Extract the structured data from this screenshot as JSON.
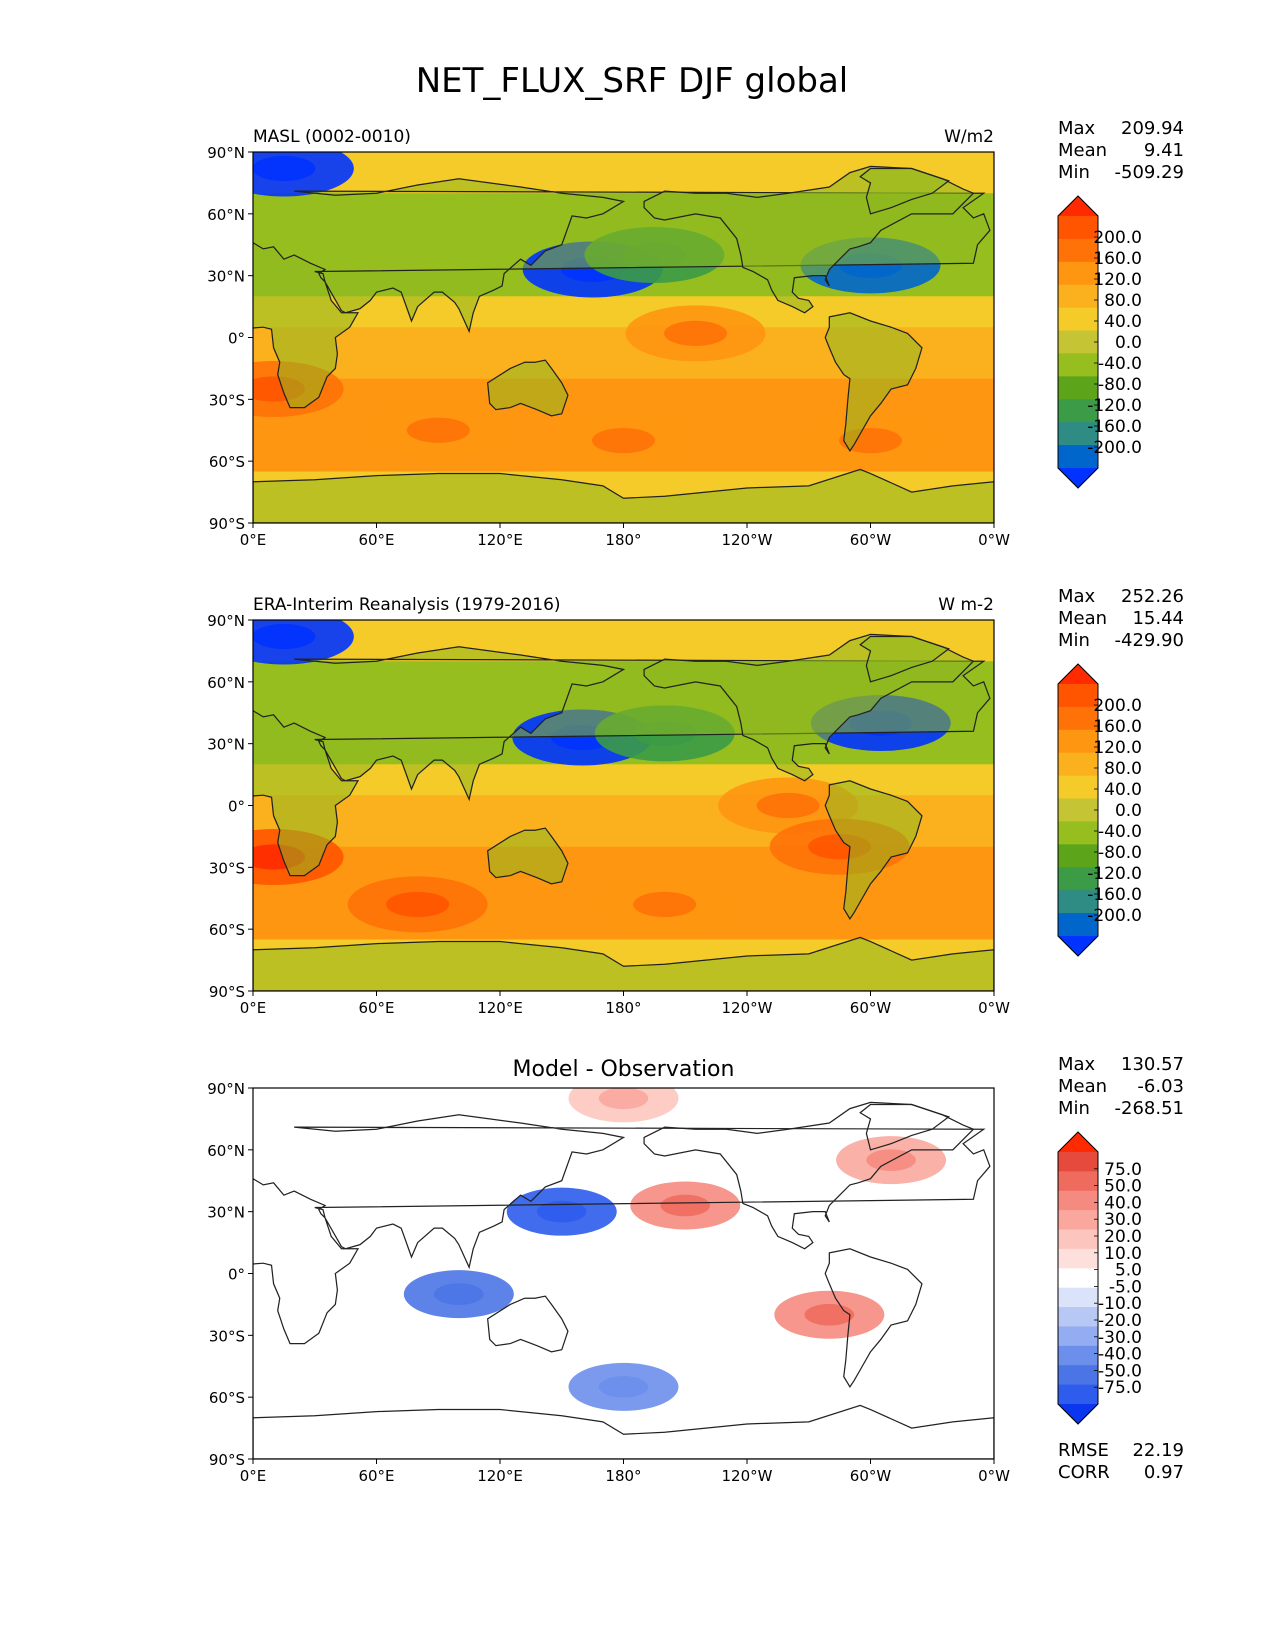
{
  "page_title": "NET_FLUX_SRF DJF global",
  "axis_ticks": {
    "lat": [
      "90°N",
      "60°N",
      "30°N",
      "0°",
      "30°S",
      "60°S",
      "90°S"
    ],
    "lon": [
      "0°E",
      "60°E",
      "120°E",
      "180°",
      "120°W",
      "60°W",
      "0°W"
    ]
  },
  "colors": {
    "seq": [
      "#0033ff",
      "#0066cc",
      "#2f8c84",
      "#3b9b46",
      "#5ca51a",
      "#96be1e",
      "#c4c434",
      "#f4cb28",
      "#fbb11e",
      "#fe9611",
      "#ff7208",
      "#ff5500",
      "#ff2a00"
    ],
    "diff": [
      "#0a36ee",
      "#2e5cec",
      "#4b74e6",
      "#6d8fec",
      "#94acf1",
      "#b7c8f5",
      "#dbe3fb",
      "#ffffff",
      "#fde0dc",
      "#fcc6bf",
      "#faa89e",
      "#f58b80",
      "#ef6b5e",
      "#e54a3c",
      "#ff2a00"
    ],
    "coast": "#222222"
  },
  "chart_data": [
    {
      "type": "heatmap",
      "subtitle_left": "MASL (0002-0010)",
      "subtitle_right": "W/m2",
      "stats": {
        "Max": "209.94",
        "Mean": "9.41",
        "Min": "-509.29"
      },
      "colorbar_levels": [
        "200.0",
        "160.0",
        "120.0",
        "80.0",
        "40.0",
        "0.0",
        "-40.0",
        "-80.0",
        "-120.0",
        "-160.0",
        "-200.0"
      ],
      "colormap": "seq",
      "xlim": [
        0,
        360
      ],
      "ylim": [
        -90,
        90
      ],
      "regions": [
        {
          "lon": 165,
          "lat": 33,
          "value": -200
        },
        {
          "lon": 300,
          "lat": 35,
          "value": -160
        },
        {
          "lon": 15,
          "lat": 82,
          "value": -200
        },
        {
          "lon": 195,
          "lat": 40,
          "value": -80
        },
        {
          "lon": 215,
          "lat": 2,
          "value": 120
        },
        {
          "lon": 90,
          "lat": -45,
          "value": 120
        },
        {
          "lon": 180,
          "lat": -50,
          "value": 120
        },
        {
          "lon": 300,
          "lat": -50,
          "value": 120
        },
        {
          "lon": 10,
          "lat": -25,
          "value": 160
        }
      ]
    },
    {
      "type": "heatmap",
      "subtitle_left": "ERA-Interim Reanalysis (1979-2016)",
      "subtitle_right": "W m-2",
      "stats": {
        "Max": "252.26",
        "Mean": "15.44",
        "Min": "-429.90"
      },
      "colorbar_levels": [
        "200.0",
        "160.0",
        "120.0",
        "80.0",
        "40.0",
        "0.0",
        "-40.0",
        "-80.0",
        "-120.0",
        "-160.0",
        "-200.0"
      ],
      "colormap": "seq",
      "xlim": [
        0,
        360
      ],
      "ylim": [
        -90,
        90
      ],
      "regions": [
        {
          "lon": 160,
          "lat": 33,
          "value": -200
        },
        {
          "lon": 305,
          "lat": 40,
          "value": -200
        },
        {
          "lon": 15,
          "lat": 82,
          "value": -200
        },
        {
          "lon": 200,
          "lat": 35,
          "value": -80
        },
        {
          "lon": 260,
          "lat": 0,
          "value": 120
        },
        {
          "lon": 80,
          "lat": -48,
          "value": 160
        },
        {
          "lon": 200,
          "lat": -48,
          "value": 120
        },
        {
          "lon": 10,
          "lat": -25,
          "value": 200
        },
        {
          "lon": 285,
          "lat": -20,
          "value": 160
        }
      ]
    },
    {
      "type": "heatmap",
      "title": "Model - Observation",
      "stats": {
        "Max": "130.57",
        "Mean": "-6.03",
        "Min": "-268.51"
      },
      "colorbar_levels": [
        "75.0",
        "50.0",
        "40.0",
        "30.0",
        "20.0",
        "10.0",
        "5.0",
        "-5.0",
        "-10.0",
        "-20.0",
        "-30.0",
        "-40.0",
        "-50.0",
        "-75.0"
      ],
      "colormap": "diff",
      "extra_stats": {
        "RMSE": "22.19",
        "CORR": "0.97"
      },
      "xlim": [
        0,
        360
      ],
      "ylim": [
        -90,
        90
      ],
      "regions": [
        {
          "lon": 150,
          "lat": 30,
          "value": -50
        },
        {
          "lon": 210,
          "lat": 33,
          "value": 40
        },
        {
          "lon": 100,
          "lat": -10,
          "value": -40
        },
        {
          "lon": 280,
          "lat": -20,
          "value": 40
        },
        {
          "lon": 180,
          "lat": -55,
          "value": -30
        },
        {
          "lon": 180,
          "lat": 85,
          "value": 20
        },
        {
          "lon": 310,
          "lat": 55,
          "value": 30
        }
      ]
    }
  ]
}
